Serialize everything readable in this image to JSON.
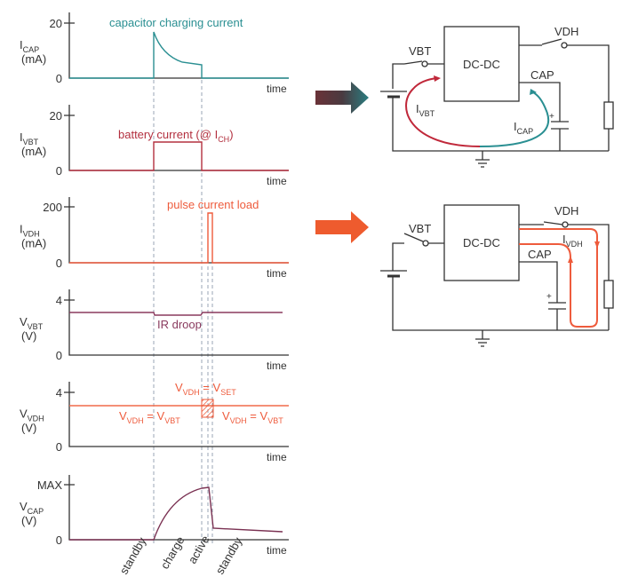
{
  "colors": {
    "icap": "#2a8f92",
    "ivbt": "#b3303f",
    "ivdh": "#ee5b3c",
    "vvbt": "#8a3a5e",
    "vdh": "#f06a4a",
    "vcap": "#7a3152"
  },
  "panels": [
    {
      "label": "I",
      "sub": "CAP",
      "unit": "(mA)",
      "tick_top": "20",
      "tick_zero": "0",
      "xlabel": "time",
      "annotation": "capacitor charging current"
    },
    {
      "label": "I",
      "sub": "VBT",
      "unit": "(mA)",
      "tick_top": "20",
      "tick_zero": "0",
      "xlabel": "time",
      "annotation": "battery current (@ I",
      "annotation_sub": "CH",
      "annotation_end": ")"
    },
    {
      "label": "I",
      "sub": "VDH",
      "unit": "(mA)",
      "tick_top": "200",
      "tick_zero": "0",
      "xlabel": "time",
      "annotation": "pulse current load"
    },
    {
      "label": "V",
      "sub": "VBT",
      "unit": "(V)",
      "tick_top": "4",
      "tick_zero": "0",
      "xlabel": "time",
      "annotation": "IR droop"
    },
    {
      "label": "V",
      "sub": "VDH",
      "unit": "(V)",
      "tick_top": "4",
      "tick_zero": "0",
      "xlabel": "time",
      "ann_set": {
        "a": "V",
        "a_sub": "VDH",
        "eq": " = V",
        "b_sub": "SET"
      },
      "ann_left": {
        "a": "V",
        "a_sub": "VDH",
        "eq": " = V",
        "b_sub": "VBT"
      },
      "ann_right": {
        "a": "V",
        "a_sub": "VDH",
        "eq": " = V",
        "b_sub": "VBT"
      }
    },
    {
      "label": "V",
      "sub": "CAP",
      "unit": "(V)",
      "tick_top": "MAX",
      "tick_zero": "0",
      "xlabel": "time"
    }
  ],
  "phases": [
    "standby",
    "charge",
    "active",
    "standby"
  ],
  "circuit_top": {
    "box": "DC-DC",
    "vbt": "VBT",
    "vdh": "VDH",
    "cap": "CAP",
    "plus": "+",
    "i1": "I",
    "i1_sub": "VBT",
    "i2": "I",
    "i2_sub": "CAP"
  },
  "circuit_bottom": {
    "box": "DC-DC",
    "vbt": "VBT",
    "vdh": "VDH",
    "cap": "CAP",
    "plus": "+",
    "i1": "I",
    "i1_sub": "VDH"
  }
}
